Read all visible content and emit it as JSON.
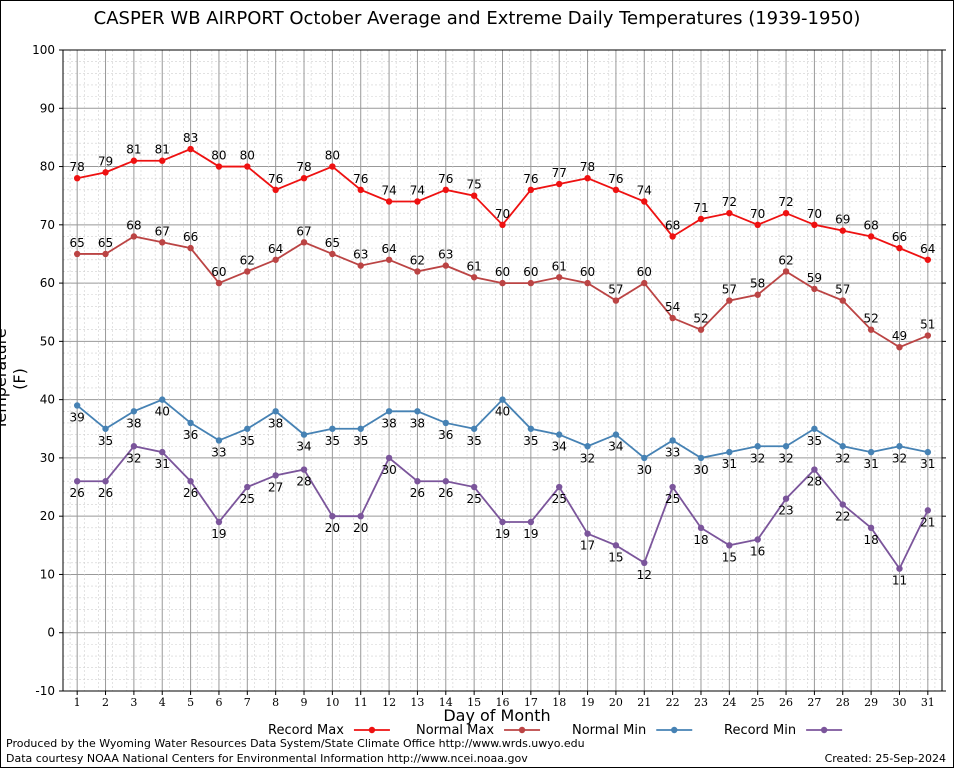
{
  "chart_data": {
    "type": "line",
    "title": "CASPER WB AIRPORT October Average and Extreme Daily Temperatures (1939-1950)",
    "xlabel": "Day of Month",
    "ylabel": "Temperature (F)",
    "ylim": [
      -10,
      100
    ],
    "yticks": [
      -10,
      0,
      10,
      20,
      30,
      40,
      50,
      60,
      70,
      80,
      90,
      100
    ],
    "x": [
      1,
      2,
      3,
      4,
      5,
      6,
      7,
      8,
      9,
      10,
      11,
      12,
      13,
      14,
      15,
      16,
      17,
      18,
      19,
      20,
      21,
      22,
      23,
      24,
      25,
      26,
      27,
      28,
      29,
      30,
      31
    ],
    "grid": true,
    "legend_position": "bottom",
    "series": [
      {
        "name": "Record Max",
        "color": "#ee1111",
        "label_position": "above",
        "values": [
          78,
          79,
          81,
          81,
          83,
          80,
          80,
          76,
          78,
          80,
          76,
          74,
          74,
          76,
          75,
          70,
          76,
          77,
          78,
          76,
          74,
          68,
          71,
          72,
          70,
          72,
          70,
          69,
          68,
          66,
          64
        ]
      },
      {
        "name": "Normal Max",
        "color": "#bb4444",
        "label_position": "above",
        "values": [
          65,
          65,
          68,
          67,
          66,
          60,
          62,
          64,
          67,
          65,
          63,
          64,
          62,
          63,
          61,
          60,
          60,
          61,
          60,
          57,
          60,
          54,
          52,
          57,
          58,
          62,
          59,
          57,
          52,
          49,
          51
        ]
      },
      {
        "name": "Normal Min",
        "color": "#4682b4",
        "label_position": "below",
        "values": [
          39,
          35,
          38,
          40,
          36,
          33,
          35,
          38,
          34,
          35,
          35,
          38,
          38,
          36,
          35,
          40,
          35,
          34,
          32,
          34,
          30,
          33,
          30,
          31,
          32,
          32,
          35,
          32,
          31,
          32,
          31
        ]
      },
      {
        "name": "Record Min",
        "color": "#7b559b",
        "label_position": "below",
        "values": [
          26,
          26,
          32,
          31,
          26,
          19,
          25,
          27,
          28,
          20,
          20,
          30,
          26,
          26,
          25,
          19,
          19,
          25,
          17,
          15,
          12,
          25,
          18,
          15,
          16,
          23,
          28,
          22,
          18,
          11,
          21
        ]
      }
    ]
  },
  "footer": {
    "produced_by": "Produced by the Wyoming Water Resources Data System/State Climate Office http://www.wrds.uwyo.edu",
    "courtesy": "Data courtesy NOAA National Centers for Environmental Information http://www.ncei.noaa.gov",
    "created": "Created:  25-Sep-2024"
  }
}
